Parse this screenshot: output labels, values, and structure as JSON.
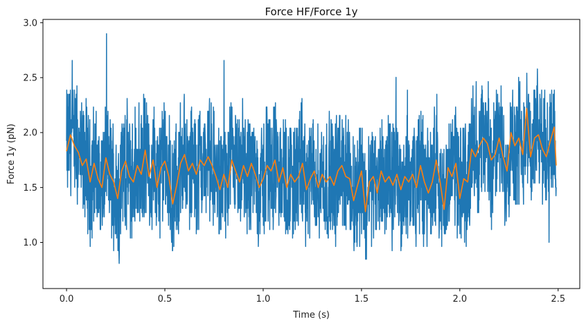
{
  "chart_data": {
    "type": "line",
    "title": "Force HF/Force 1y",
    "xlabel": "Time (s)",
    "ylabel": "Force 1y (pN)",
    "xlim": [
      -0.12,
      2.61
    ],
    "ylim": [
      0.58,
      3.03
    ],
    "xticks": [
      0.0,
      0.5,
      1.0,
      1.5,
      2.0,
      2.5
    ],
    "xtick_labels": [
      "0.0",
      "0.5",
      "1.0",
      "1.5",
      "2.0",
      "2.5"
    ],
    "yticks": [
      1.0,
      1.5,
      2.0,
      2.5,
      3.0
    ],
    "ytick_labels": [
      "1.0",
      "1.5",
      "2.0",
      "2.5",
      "3.0"
    ],
    "grid": false,
    "legend": "none",
    "raw_trace": {
      "color": "#1f77b4",
      "description_values": {
        "x_range": [
          0.0,
          2.49
        ],
        "typical_band": [
          1.15,
          2.2
        ],
        "min": 0.65,
        "max": 2.9
      }
    },
    "series": [
      {
        "color": "#ff7f0e",
        "x": [
          0.0,
          0.02,
          0.04,
          0.06,
          0.08,
          0.1,
          0.12,
          0.14,
          0.16,
          0.18,
          0.2,
          0.22,
          0.24,
          0.26,
          0.28,
          0.3,
          0.32,
          0.34,
          0.36,
          0.38,
          0.4,
          0.42,
          0.44,
          0.46,
          0.48,
          0.5,
          0.52,
          0.54,
          0.56,
          0.58,
          0.6,
          0.62,
          0.64,
          0.66,
          0.68,
          0.7,
          0.72,
          0.74,
          0.76,
          0.78,
          0.8,
          0.82,
          0.84,
          0.86,
          0.88,
          0.9,
          0.92,
          0.94,
          0.96,
          0.98,
          1.0,
          1.02,
          1.04,
          1.06,
          1.08,
          1.1,
          1.12,
          1.14,
          1.16,
          1.18,
          1.2,
          1.22,
          1.24,
          1.26,
          1.28,
          1.3,
          1.32,
          1.34,
          1.36,
          1.38,
          1.4,
          1.42,
          1.44,
          1.46,
          1.48,
          1.5,
          1.52,
          1.54,
          1.56,
          1.58,
          1.6,
          1.62,
          1.64,
          1.66,
          1.68,
          1.7,
          1.72,
          1.74,
          1.76,
          1.78,
          1.8,
          1.82,
          1.84,
          1.86,
          1.88,
          1.9,
          1.92,
          1.94,
          1.96,
          1.98,
          2.0,
          2.02,
          2.04,
          2.06,
          2.08,
          2.1,
          2.12,
          2.14,
          2.16,
          2.18,
          2.2,
          2.22,
          2.24,
          2.26,
          2.28,
          2.3,
          2.32,
          2.34,
          2.36,
          2.38,
          2.4,
          2.42,
          2.44,
          2.46,
          2.48,
          2.49
        ],
        "values": [
          1.83,
          1.98,
          1.88,
          1.82,
          1.7,
          1.76,
          1.55,
          1.72,
          1.58,
          1.5,
          1.77,
          1.62,
          1.55,
          1.4,
          1.65,
          1.74,
          1.6,
          1.55,
          1.7,
          1.62,
          1.84,
          1.6,
          1.75,
          1.5,
          1.68,
          1.74,
          1.6,
          1.35,
          1.52,
          1.72,
          1.8,
          1.65,
          1.72,
          1.62,
          1.75,
          1.7,
          1.78,
          1.7,
          1.6,
          1.48,
          1.62,
          1.5,
          1.75,
          1.65,
          1.55,
          1.7,
          1.6,
          1.72,
          1.62,
          1.5,
          1.58,
          1.7,
          1.65,
          1.75,
          1.55,
          1.68,
          1.5,
          1.62,
          1.55,
          1.6,
          1.72,
          1.48,
          1.58,
          1.65,
          1.5,
          1.62,
          1.55,
          1.6,
          1.52,
          1.65,
          1.7,
          1.6,
          1.58,
          1.38,
          1.52,
          1.65,
          1.28,
          1.55,
          1.6,
          1.45,
          1.65,
          1.55,
          1.6,
          1.52,
          1.62,
          1.48,
          1.6,
          1.55,
          1.62,
          1.5,
          1.7,
          1.55,
          1.45,
          1.55,
          1.75,
          1.55,
          1.3,
          1.68,
          1.6,
          1.72,
          1.4,
          1.58,
          1.55,
          1.85,
          1.78,
          1.88,
          1.95,
          1.9,
          1.75,
          1.8,
          1.95,
          1.78,
          1.65,
          2.0,
          1.88,
          1.95,
          1.8,
          2.22,
          1.78,
          1.95,
          1.98,
          1.85,
          1.78,
          1.92,
          2.05,
          1.7
        ]
      }
    ]
  }
}
